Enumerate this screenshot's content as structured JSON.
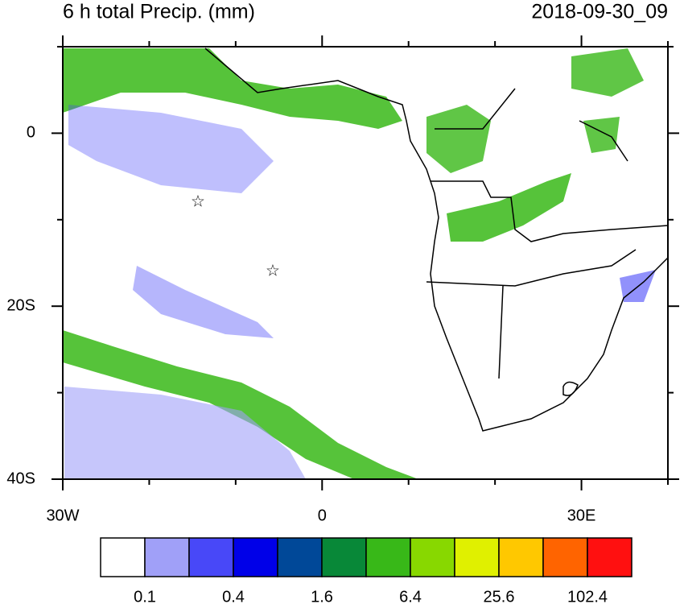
{
  "header": {
    "title": "6 h total Precip. (mm)",
    "date": "2018-09-30_09"
  },
  "map": {
    "lonlim": [
      -30,
      40
    ],
    "latlim": [
      -40,
      10
    ],
    "xticks": [
      {
        "value": -30,
        "label": "30W"
      },
      0,
      {
        "value": 30,
        "label": "30E"
      }
    ],
    "yticks": [
      0,
      {
        "value": -20,
        "label": "20S"
      },
      {
        "value": -40,
        "label": "40S"
      }
    ],
    "xminor": [
      -20,
      -10,
      10,
      20,
      40
    ],
    "yminor": [
      -30,
      -10,
      10
    ]
  },
  "colorbar": {
    "colors": [
      "#ffffff",
      "#a0a0f8",
      "#4848f8",
      "#0000e8",
      "#004898",
      "#088838",
      "#38b818",
      "#88d800",
      "#e0f000",
      "#ffc800",
      "#ff6400",
      "#ff1010"
    ],
    "labels": [
      "0.1",
      "0.4",
      "1.6",
      "6.4",
      "25.6",
      "102.4"
    ]
  }
}
